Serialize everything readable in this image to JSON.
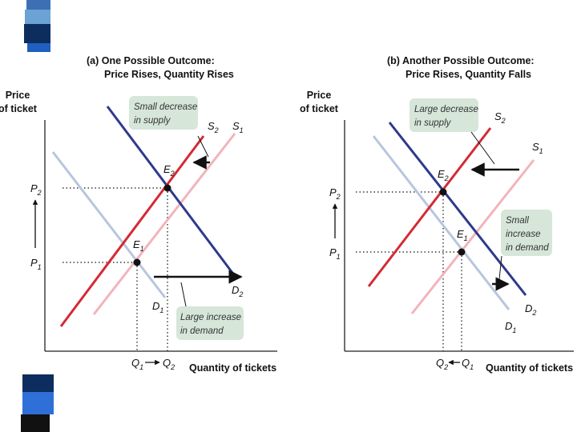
{
  "decor": {
    "top_colors": [
      "#3d6fb5",
      "#6aa3d4",
      "#5a8fc3",
      "#0d2d5e",
      "#1f5fbf"
    ],
    "bottom_colors": [
      "#0d2d5e",
      "#2f6fd8",
      "#111111"
    ]
  },
  "panel_a": {
    "title_line1": "(a) One Possible Outcome:",
    "title_line2": "Price Rises, Quantity Rises",
    "y_axis_line1": "Price",
    "y_axis_line2": "of ticket",
    "x_axis": "Quantity of tickets",
    "note_supply_line1": "Small decrease",
    "note_supply_line2": "in supply",
    "note_demand_line1": "Large increase",
    "note_demand_line2": "in demand",
    "labels": {
      "s2": "S",
      "s2_sub": "2",
      "s1": "S",
      "s1_sub": "1",
      "d1": "D",
      "d1_sub": "1",
      "d2": "D",
      "d2_sub": "2",
      "e1": "E",
      "e1_sub": "1",
      "e2": "E",
      "e2_sub": "2",
      "p1": "P",
      "p1_sub": "1",
      "p2": "P",
      "p2_sub": "2",
      "q1": "Q",
      "q1_sub": "1",
      "q2": "Q",
      "q2_sub": "2"
    }
  },
  "panel_b": {
    "title_line1": "(b) Another Possible Outcome:",
    "title_line2": "Price Rises, Quantity Falls",
    "y_axis_line1": "Price",
    "y_axis_line2": "of ticket",
    "x_axis": "Quantity of tickets",
    "note_supply_line1": "Large decrease",
    "note_supply_line2": "in supply",
    "note_demand_line1": "Small",
    "note_demand_line2": "increase",
    "note_demand_line3": "in demand",
    "labels": {
      "s2": "S",
      "s2_sub": "2",
      "s1": "S",
      "s1_sub": "1",
      "d1": "D",
      "d1_sub": "1",
      "d2": "D",
      "d2_sub": "2",
      "e1": "E",
      "e1_sub": "1",
      "e2": "E",
      "e2_sub": "2",
      "p1": "P",
      "p1_sub": "1",
      "p2": "P",
      "p2_sub": "2",
      "q1": "Q",
      "q1_sub": "1",
      "q2": "Q",
      "q2_sub": "2"
    }
  },
  "colors": {
    "s2": "#d42a35",
    "s1": "#f2b4bb",
    "d1": "#b7c6dd",
    "d2": "#2e3a8c",
    "note_bg": "#d6e6d9",
    "axis": "#222222"
  }
}
